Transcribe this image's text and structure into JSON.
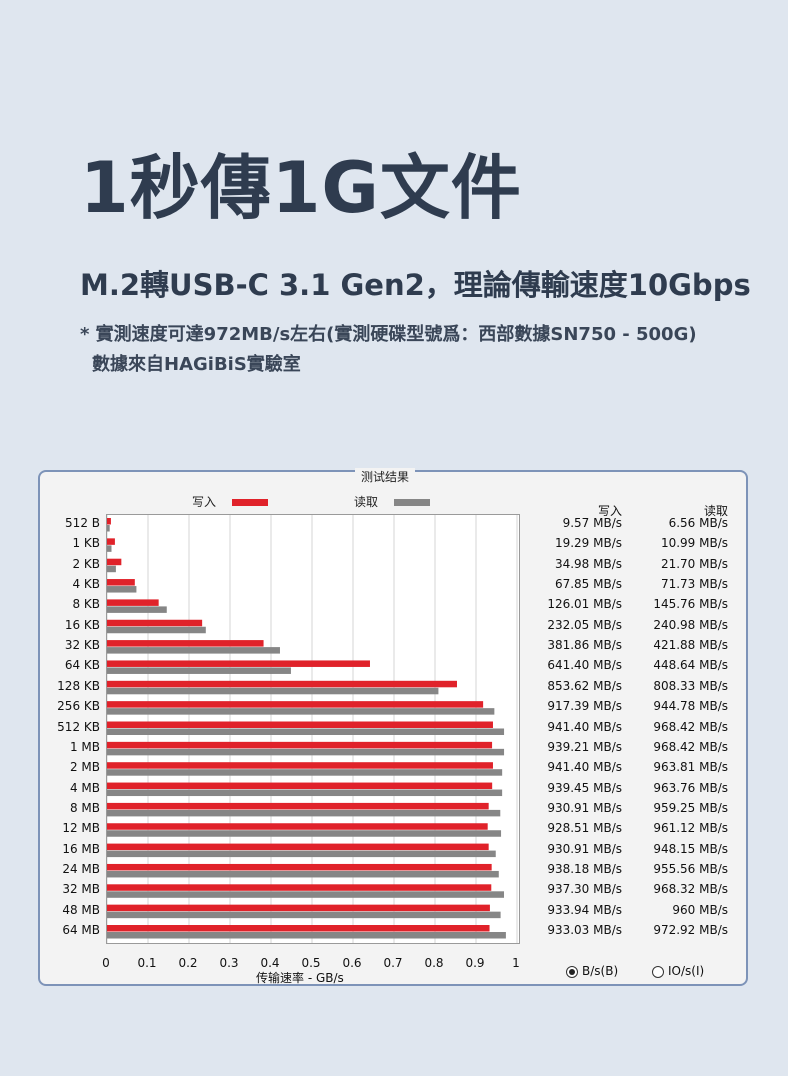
{
  "headline": "1秒傳1G文件",
  "subhead": "M.2轉USB-C 3.1 Gen2，理論傳輸速度10Gbps",
  "note": {
    "line1": "* 實測速度可達972MB/s左右(實測硬碟型號爲：西部數據SN750 - 500G)",
    "line2": "數據來自HAGiBiS實驗室"
  },
  "panel": {
    "group_title": "测试结果",
    "legend_write": "写入",
    "legend_read": "读取",
    "col_write": "写入",
    "col_read": "读取",
    "radio_bs": "B/s(B)",
    "radio_ios": "IO/s(I)",
    "radio_selected": "B/s(B)"
  },
  "colors": {
    "write": "#e0222a",
    "read": "#868686"
  },
  "chart_data": {
    "type": "bar",
    "orientation": "horizontal",
    "title": "",
    "xlabel": "传输速率 - GB/s",
    "ylabel": "",
    "xlim": [
      0,
      1
    ],
    "xticks": [
      "0",
      "0.1",
      "0.2",
      "0.3",
      "0.4",
      "0.5",
      "0.6",
      "0.7",
      "0.8",
      "0.9",
      "1"
    ],
    "grid": true,
    "categories": [
      "512 B",
      "1 KB",
      "2 KB",
      "4 KB",
      "8 KB",
      "16 KB",
      "32 KB",
      "64 KB",
      "128 KB",
      "256 KB",
      "512 KB",
      "1 MB",
      "2 MB",
      "4 MB",
      "8 MB",
      "12 MB",
      "16 MB",
      "24 MB",
      "32 MB",
      "48 MB",
      "64 MB"
    ],
    "series": [
      {
        "name": "写入",
        "color": "#e0222a",
        "values": [
          0.00957,
          0.01929,
          0.03498,
          0.06785,
          0.12601,
          0.23205,
          0.38186,
          0.6414,
          0.85362,
          0.91739,
          0.9414,
          0.93921,
          0.9414,
          0.93945,
          0.93091,
          0.92851,
          0.93091,
          0.93818,
          0.9373,
          0.93394,
          0.93303
        ],
        "labels": [
          "9.57 MB/s",
          "19.29 MB/s",
          "34.98 MB/s",
          "67.85 MB/s",
          "126.01 MB/s",
          "232.05 MB/s",
          "381.86 MB/s",
          "641.40 MB/s",
          "853.62 MB/s",
          "917.39 MB/s",
          "941.40 MB/s",
          "939.21 MB/s",
          "941.40 MB/s",
          "939.45 MB/s",
          "930.91 MB/s",
          "928.51 MB/s",
          "930.91 MB/s",
          "938.18 MB/s",
          "937.30 MB/s",
          "933.94 MB/s",
          "933.03 MB/s"
        ]
      },
      {
        "name": "读取",
        "color": "#868686",
        "values": [
          0.00656,
          0.01099,
          0.0217,
          0.07173,
          0.14576,
          0.24098,
          0.42188,
          0.44864,
          0.80833,
          0.94478,
          0.96842,
          0.96842,
          0.96381,
          0.96376,
          0.95925,
          0.96112,
          0.94815,
          0.95556,
          0.96832,
          0.96,
          0.97292
        ],
        "labels": [
          "6.56 MB/s",
          "10.99 MB/s",
          "21.70 MB/s",
          "71.73 MB/s",
          "145.76 MB/s",
          "240.98 MB/s",
          "421.88 MB/s",
          "448.64 MB/s",
          "808.33 MB/s",
          "944.78 MB/s",
          "968.42 MB/s",
          "968.42 MB/s",
          "963.81 MB/s",
          "963.76 MB/s",
          "959.25 MB/s",
          "961.12 MB/s",
          "948.15 MB/s",
          "955.56 MB/s",
          "968.32 MB/s",
          "960 MB/s",
          "972.92 MB/s"
        ]
      }
    ]
  }
}
